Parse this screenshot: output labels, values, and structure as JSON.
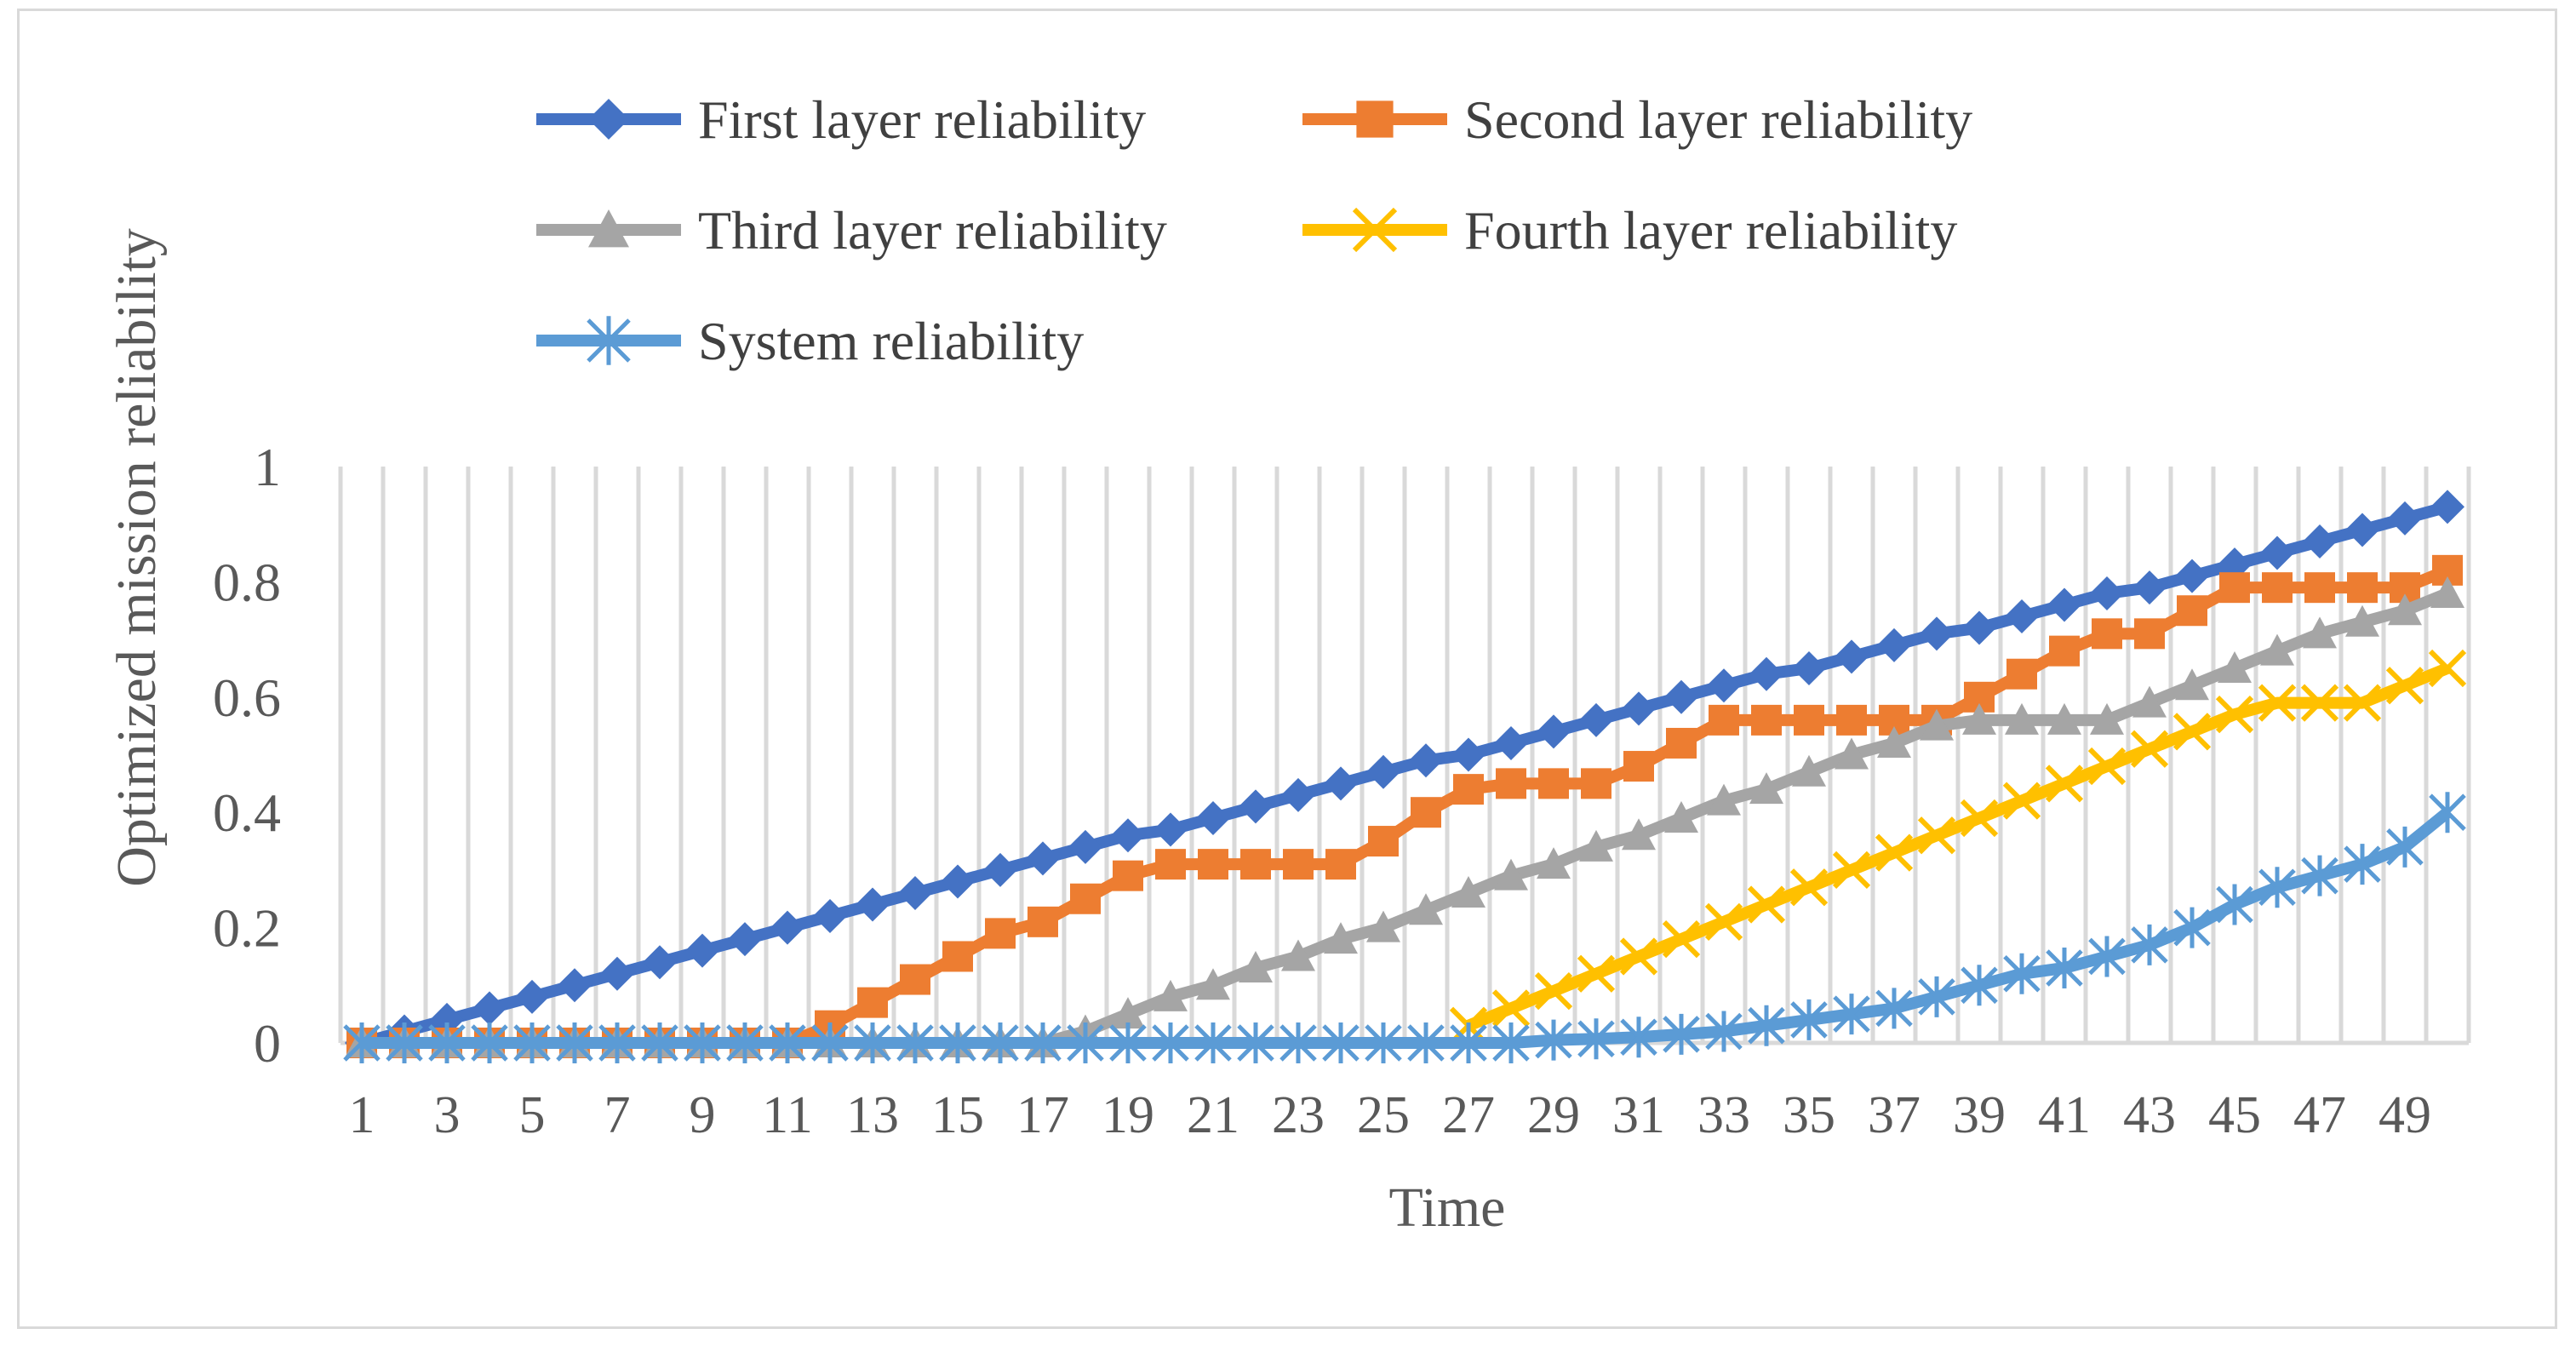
{
  "chart_data": {
    "type": "line",
    "title": "",
    "xlabel": "Time",
    "ylabel": "Optimized mission reliability",
    "ylim": [
      0,
      1
    ],
    "yticks": [
      0,
      0.2,
      0.4,
      0.6,
      0.8,
      1
    ],
    "ytick_labels": [
      "0",
      "0.2",
      "0.4",
      "0.6",
      "0.8",
      "1"
    ],
    "x": [
      1,
      2,
      3,
      4,
      5,
      6,
      7,
      8,
      9,
      10,
      11,
      12,
      13,
      14,
      15,
      16,
      17,
      18,
      19,
      20,
      21,
      22,
      23,
      24,
      25,
      26,
      27,
      28,
      29,
      30,
      31,
      32,
      33,
      34,
      35,
      36,
      37,
      38,
      39,
      40,
      41,
      42,
      43,
      44,
      45,
      46,
      47,
      48,
      49,
      50
    ],
    "xtick_labels": [
      "1",
      "3",
      "5",
      "7",
      "9",
      "11",
      "13",
      "15",
      "17",
      "19",
      "21",
      "23",
      "25",
      "27",
      "29",
      "31",
      "33",
      "35",
      "37",
      "39",
      "41",
      "43",
      "45",
      "47",
      "49"
    ],
    "grid": "vertical",
    "legend_position": "top",
    "series": [
      {
        "name": "First layer reliability",
        "color": "#4472c4",
        "marker": "diamond",
        "values": [
          0.0,
          0.02,
          0.04,
          0.06,
          0.08,
          0.1,
          0.12,
          0.14,
          0.16,
          0.18,
          0.2,
          0.22,
          0.24,
          0.26,
          0.28,
          0.3,
          0.32,
          0.34,
          0.36,
          0.37,
          0.39,
          0.41,
          0.43,
          0.45,
          0.47,
          0.49,
          0.5,
          0.52,
          0.54,
          0.56,
          0.58,
          0.6,
          0.62,
          0.64,
          0.65,
          0.67,
          0.69,
          0.71,
          0.72,
          0.74,
          0.76,
          0.78,
          0.79,
          0.81,
          0.83,
          0.85,
          0.87,
          0.89,
          0.91,
          0.93
        ]
      },
      {
        "name": "Second layer reliability",
        "color": "#ed7d31",
        "marker": "square",
        "values": [
          0,
          0,
          0,
          0,
          0,
          0,
          0,
          0,
          0,
          0,
          0,
          0.03,
          0.07,
          0.11,
          0.15,
          0.19,
          0.21,
          0.25,
          0.29,
          0.31,
          0.31,
          0.31,
          0.31,
          0.31,
          0.35,
          0.4,
          0.44,
          0.45,
          0.45,
          0.45,
          0.48,
          0.52,
          0.56,
          0.56,
          0.56,
          0.56,
          0.56,
          0.56,
          0.6,
          0.64,
          0.68,
          0.71,
          0.71,
          0.75,
          0.79,
          0.79,
          0.79,
          0.79,
          0.79,
          0.82
        ]
      },
      {
        "name": "Third layer reliability",
        "color": "#a5a5a5",
        "marker": "triangle",
        "values": [
          0,
          0,
          0,
          0,
          0,
          0,
          0,
          0,
          0,
          0,
          0,
          0,
          0,
          0,
          0,
          0,
          0,
          0.02,
          0.05,
          0.08,
          0.1,
          0.13,
          0.15,
          0.18,
          0.2,
          0.23,
          0.26,
          0.29,
          0.31,
          0.34,
          0.36,
          0.39,
          0.42,
          0.44,
          0.47,
          0.5,
          0.52,
          0.55,
          0.56,
          0.56,
          0.56,
          0.56,
          0.59,
          0.62,
          0.65,
          0.68,
          0.71,
          0.73,
          0.75,
          0.78
        ]
      },
      {
        "name": "Fourth layer reliability",
        "color": "#ffc000",
        "marker": "x",
        "values": [
          null,
          null,
          null,
          null,
          null,
          null,
          null,
          null,
          null,
          null,
          null,
          null,
          null,
          null,
          null,
          null,
          null,
          null,
          null,
          null,
          null,
          null,
          null,
          null,
          null,
          null,
          0.03,
          0.06,
          0.09,
          0.12,
          0.15,
          0.18,
          0.21,
          0.24,
          0.27,
          0.3,
          0.33,
          0.36,
          0.39,
          0.42,
          0.45,
          0.48,
          0.51,
          0.54,
          0.57,
          0.59,
          0.59,
          0.59,
          0.62,
          0.65
        ]
      },
      {
        "name": "System reliability",
        "color": "#5b9bd5",
        "marker": "asterisk",
        "values": [
          0,
          0,
          0,
          0,
          0,
          0,
          0,
          0,
          0,
          0,
          0,
          0,
          0,
          0,
          0,
          0,
          0,
          0,
          0,
          0,
          0,
          0,
          0,
          0,
          0,
          0,
          0,
          0,
          0.005,
          0.007,
          0.01,
          0.015,
          0.02,
          0.03,
          0.04,
          0.05,
          0.06,
          0.08,
          0.1,
          0.12,
          0.13,
          0.15,
          0.17,
          0.2,
          0.24,
          0.27,
          0.29,
          0.31,
          0.34,
          0.4
        ]
      }
    ]
  }
}
